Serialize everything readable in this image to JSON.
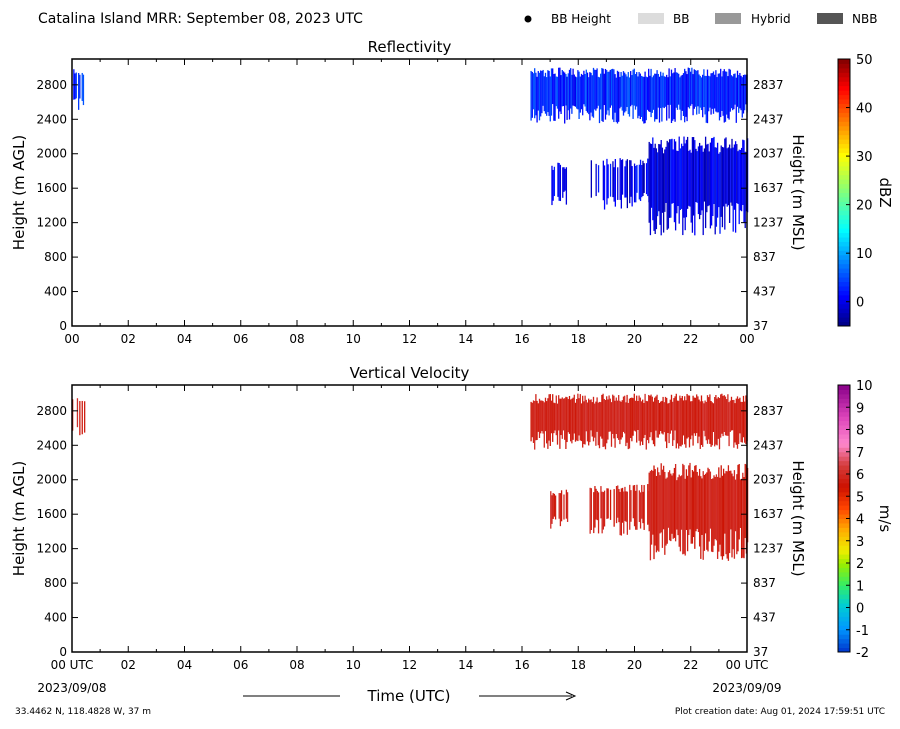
{
  "header": {
    "title": "Catalina Island MRR:  September 08, 2023 UTC",
    "legend": [
      {
        "label": "BB Height",
        "marker": "dot",
        "color": "#000000"
      },
      {
        "label": "BB",
        "marker": "box",
        "color": "#dcdcdc"
      },
      {
        "label": "Hybrid",
        "marker": "box",
        "color": "#999999"
      },
      {
        "label": "NBB",
        "marker": "box",
        "color": "#555555"
      }
    ]
  },
  "footer": {
    "location": "33.4462 N, 118.4828 W, 37 m",
    "creation": "Plot creation date: Aug 01, 2024 17:59:51 UTC",
    "time_label": "Time (UTC)",
    "start_label": "00 UTC",
    "end_label": "00 UTC",
    "start_date": "2023/09/08",
    "end_date": "2023/09/09"
  },
  "chart_data": [
    {
      "type": "heatmap",
      "title": "Reflectivity",
      "ylabel": "Height (m AGL)",
      "ylabel_right": "Height (m MSL)",
      "xlim": [
        0,
        24
      ],
      "ylim": [
        0,
        3100
      ],
      "x_ticks": [
        "00",
        "02",
        "04",
        "06",
        "08",
        "10",
        "12",
        "14",
        "16",
        "18",
        "20",
        "22",
        "00"
      ],
      "y_ticks": [
        0,
        400,
        800,
        1200,
        1600,
        2000,
        2400,
        2800
      ],
      "y_ticks_right": [
        37,
        437,
        837,
        1237,
        1637,
        2037,
        2437,
        2837
      ],
      "colorbar": {
        "label": "dBZ",
        "min": -5,
        "max": 50,
        "ticks": [
          0,
          10,
          20,
          30,
          40,
          50
        ]
      },
      "regions": [
        {
          "t0": 0.0,
          "t1": 0.45,
          "h0": 2500,
          "h1": 3000,
          "value": 3
        },
        {
          "t0": 16.3,
          "t1": 24.0,
          "h0": 2350,
          "h1": 3000,
          "value": 3
        },
        {
          "t0": 17.0,
          "t1": 17.6,
          "h0": 1400,
          "h1": 1900,
          "value": 0
        },
        {
          "t0": 18.4,
          "t1": 20.5,
          "h0": 1350,
          "h1": 1950,
          "value": 0
        },
        {
          "t0": 20.5,
          "t1": 24.0,
          "h0": 1050,
          "h1": 2200,
          "value": 0
        }
      ]
    },
    {
      "type": "heatmap",
      "title": "Vertical Velocity",
      "ylabel": "Height (m AGL)",
      "ylabel_right": "Height (m MSL)",
      "xlim": [
        0,
        24
      ],
      "ylim": [
        0,
        3100
      ],
      "x_ticks": [
        "00 UTC",
        "02",
        "04",
        "06",
        "08",
        "10",
        "12",
        "14",
        "16",
        "18",
        "20",
        "22",
        "00 UTC"
      ],
      "y_ticks": [
        0,
        400,
        800,
        1200,
        1600,
        2000,
        2400,
        2800
      ],
      "y_ticks_right": [
        37,
        437,
        837,
        1237,
        1637,
        2037,
        2437,
        2837
      ],
      "colorbar": {
        "label": "m/s",
        "min": -2,
        "max": 10,
        "ticks": [
          -2,
          -1,
          0,
          1,
          2,
          3,
          4,
          5,
          6,
          7,
          8,
          9,
          10
        ]
      },
      "regions": [
        {
          "t0": 0.0,
          "t1": 0.45,
          "h0": 2500,
          "h1": 3000,
          "value": 5.8
        },
        {
          "t0": 16.3,
          "t1": 24.0,
          "h0": 2350,
          "h1": 3000,
          "value": 5.8
        },
        {
          "t0": 17.0,
          "t1": 17.6,
          "h0": 1400,
          "h1": 1900,
          "value": 5.8
        },
        {
          "t0": 18.4,
          "t1": 20.5,
          "h0": 1350,
          "h1": 1950,
          "value": 5.8
        },
        {
          "t0": 20.5,
          "t1": 24.0,
          "h0": 1050,
          "h1": 2200,
          "value": 5.8
        }
      ]
    }
  ]
}
